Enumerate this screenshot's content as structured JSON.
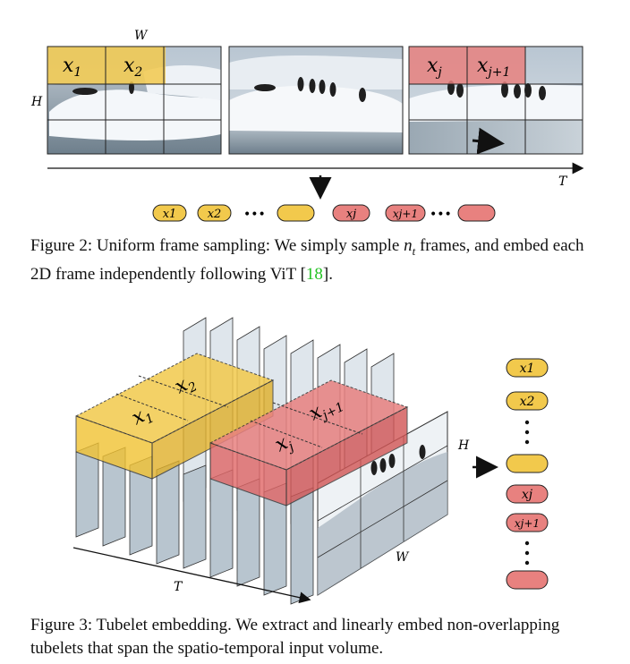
{
  "figure2": {
    "width_label": "W",
    "height_label": "H",
    "time_label": "T",
    "patch_labels": {
      "x1": "x",
      "x1_sub": "1",
      "x2": "x",
      "x2_sub": "2",
      "xj": "x",
      "xj_sub": "j",
      "xj1": "x",
      "xj1_sub": "j+1"
    },
    "token_labels": [
      "x1",
      "x2",
      "xj",
      "xj+1"
    ],
    "ellipsis": "•••",
    "caption": {
      "prefix": "Figure 2: Uniform frame sampling: We simply sample ",
      "var": "n",
      "var_sub": "t",
      "middle": " frames, and embed each 2D frame independently following ViT [",
      "ref": "18",
      "suffix": "]."
    }
  },
  "figure3": {
    "height_label": "H",
    "width_label": "W",
    "time_label": "T",
    "patch_labels": {
      "x1": "x",
      "x1_sub": "1",
      "x2": "x",
      "x2_sub": "2",
      "xj": "x",
      "xj_sub": "j",
      "xj1": "x",
      "xj1_sub": "j+1"
    },
    "token_labels": [
      "x1",
      "x2",
      "xj",
      "xj+1"
    ],
    "caption": "Figure 3: Tubelet embedding. We extract and linearly embed non-overlapping tubelets that span the spatio-temporal input volume."
  },
  "colors": {
    "yellow": "#f1c232",
    "yellow_fill": "#f2c94c",
    "red": "#e06666",
    "red_fill": "#e8817f",
    "caption_link": "#22c222"
  }
}
